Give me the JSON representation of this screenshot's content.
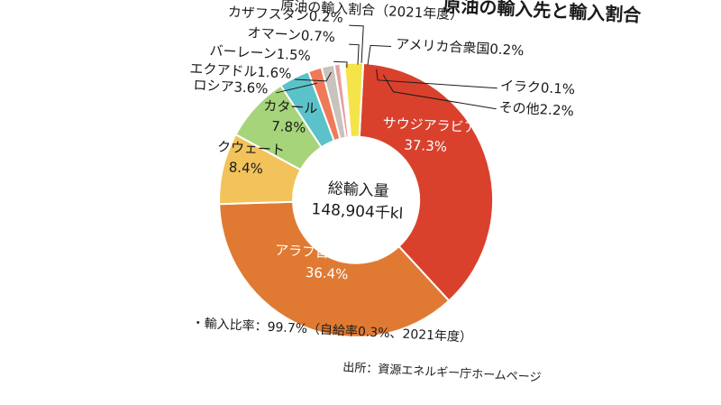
{
  "chart_data": {
    "type": "pie",
    "title": "原油の輸入先と輸入割合",
    "subtitle": "原油の輸入割合（2021年度）",
    "center_label_1": "総輸入量",
    "center_label_2": "148,904千kl",
    "slices": [
      {
        "label": "サウジアラビア",
        "value": 37.3,
        "value_text": "37.3%",
        "color": "#d9412d"
      },
      {
        "label": "アラブ首長国連邦",
        "value": 36.4,
        "value_text": "36.4%",
        "color": "#e07a33"
      },
      {
        "label": "クウェート",
        "value": 8.4,
        "value_text": "8.4%",
        "color": "#f1c35a"
      },
      {
        "label": "カタール",
        "value": 7.8,
        "value_text": "7.8%",
        "color": "#a6d47a"
      },
      {
        "label": "ロシア",
        "value": 3.6,
        "value_text": "3.6%",
        "color": "#5bc2c9"
      },
      {
        "label": "エクアドル",
        "value": 1.6,
        "value_text": "1.6%",
        "color": "#ef7a5a"
      },
      {
        "label": "バーレーン",
        "value": 1.5,
        "value_text": "1.5%",
        "color": "#c9c3bd"
      },
      {
        "label": "オマーン",
        "value": 0.7,
        "value_text": "0.7%",
        "color": "#e8a0a0"
      },
      {
        "label": "カザフスタン",
        "value": 0.2,
        "value_text": "0.2%",
        "color": "#ffffff"
      },
      {
        "label": "アメリカ合衆国",
        "value": 0.2,
        "value_text": "0.2%",
        "color": "#f0a040"
      },
      {
        "label": "イラク",
        "value": 0.1,
        "value_text": "0.1%",
        "color": "#5b9bd5"
      },
      {
        "label": "その他",
        "value": 2.2,
        "value_text": "2.2%",
        "color": "#f5e34a"
      }
    ]
  },
  "notes": {
    "ratio": "・輸入比率：99.7%（自給率0.3%、2021年度）",
    "source": "出所：資源エネルギー庁ホームページ"
  }
}
